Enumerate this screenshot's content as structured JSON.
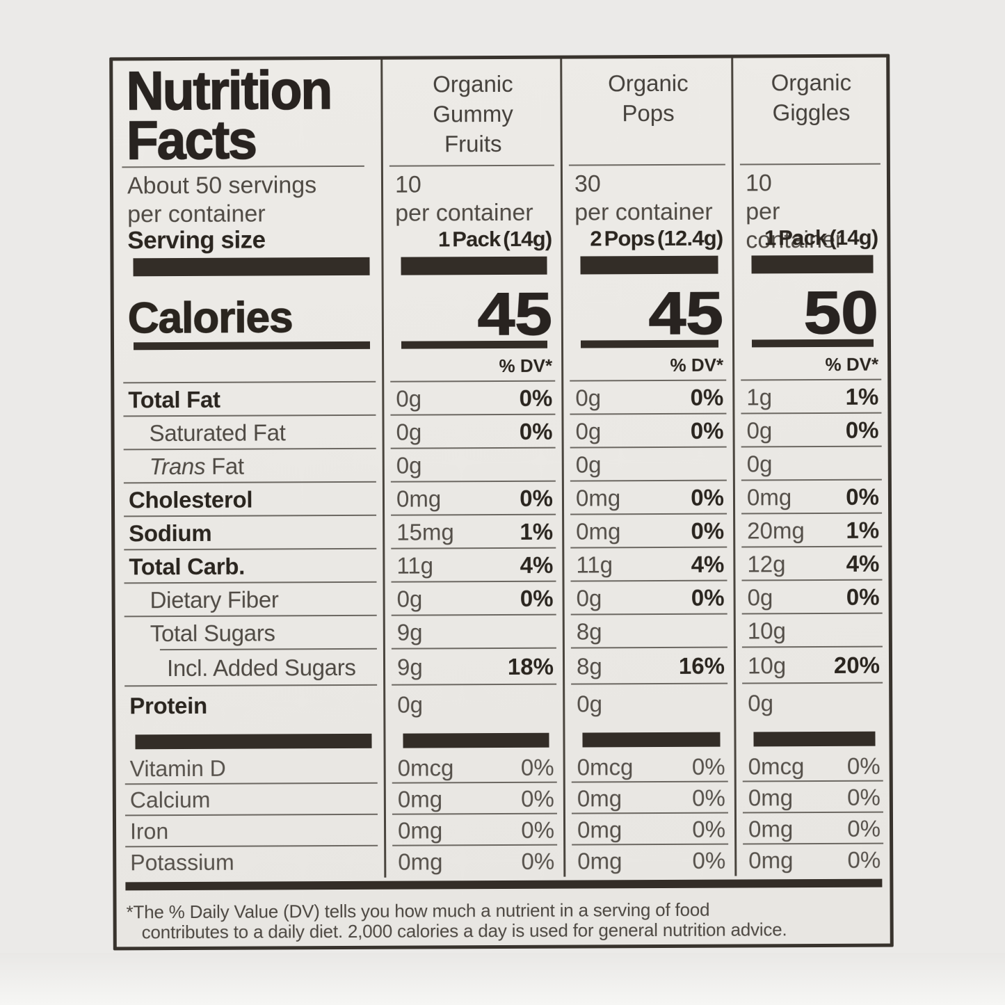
{
  "label": {
    "title_line1": "Nutrition",
    "title_line2": "Facts",
    "servings_line1": "About 50 servings",
    "servings_line2": "per container",
    "serving_size_label": "Serving size",
    "calories_label": "Calories",
    "dv_header": "% DV*",
    "footnote_line1": "*The % Daily Value (DV) tells you how much a nutrient in a serving of food",
    "footnote_line2": "contributes to a daily diet. 2,000 calories a day is used for general nutrition advice.",
    "colors": {
      "bar": "#332d27",
      "rule": "#6b6761",
      "text": "#4f4a44",
      "bold_text": "#2a251f"
    }
  },
  "products": [
    {
      "name": "Organic Gummy Fruits",
      "name_lines": [
        "Organic",
        "Gummy",
        "Fruits"
      ],
      "servings_count": "10",
      "servings_unit": "per container",
      "serving_size": "1 Pack (14g)",
      "calories": "45"
    },
    {
      "name": "Organic Pops",
      "name_lines": [
        "Organic",
        "Pops"
      ],
      "servings_count": "30",
      "servings_unit": "per container",
      "serving_size": "2 Pops (12.4g)",
      "calories": "45"
    },
    {
      "name": "Organic Giggles",
      "name_lines": [
        "Organic",
        "Giggles"
      ],
      "servings_count": "10",
      "servings_unit": "per container",
      "serving_size": "1 Pack (14g)",
      "calories": "50"
    }
  ],
  "nutrients": [
    {
      "name": "Total Fat",
      "cols": [
        {
          "amount": "0g",
          "dv": "0%"
        },
        {
          "amount": "0g",
          "dv": "0%"
        },
        {
          "amount": "1g",
          "dv": "1%"
        }
      ]
    },
    {
      "name": "Saturated Fat",
      "cols": [
        {
          "amount": "0g",
          "dv": "0%"
        },
        {
          "amount": "0g",
          "dv": "0%"
        },
        {
          "amount": "0g",
          "dv": "0%"
        }
      ]
    },
    {
      "name_italic": "Trans",
      "name_rest": " Fat",
      "cols": [
        {
          "amount": "0g"
        },
        {
          "amount": "0g"
        },
        {
          "amount": "0g"
        }
      ]
    },
    {
      "name": "Cholesterol",
      "cols": [
        {
          "amount": "0mg",
          "dv": "0%"
        },
        {
          "amount": "0mg",
          "dv": "0%"
        },
        {
          "amount": "0mg",
          "dv": "0%"
        }
      ]
    },
    {
      "name": "Sodium",
      "cols": [
        {
          "amount": "15mg",
          "dv": "1%"
        },
        {
          "amount": "0mg",
          "dv": "0%"
        },
        {
          "amount": "20mg",
          "dv": "1%"
        }
      ]
    },
    {
      "name": "Total Carb.",
      "cols": [
        {
          "amount": "11g",
          "dv": "4%"
        },
        {
          "amount": "11g",
          "dv": "4%"
        },
        {
          "amount": "12g",
          "dv": "4%"
        }
      ]
    },
    {
      "name": "Dietary Fiber",
      "cols": [
        {
          "amount": "0g",
          "dv": "0%"
        },
        {
          "amount": "0g",
          "dv": "0%"
        },
        {
          "amount": "0g",
          "dv": "0%"
        }
      ]
    },
    {
      "name": "Total Sugars",
      "cols": [
        {
          "amount": "9g"
        },
        {
          "amount": "8g"
        },
        {
          "amount": "10g"
        }
      ]
    },
    {
      "name": "Incl. Added Sugars",
      "cols": [
        {
          "amount": "9g",
          "dv": "18%"
        },
        {
          "amount": "8g",
          "dv": "16%"
        },
        {
          "amount": "10g",
          "dv": "20%"
        }
      ]
    },
    {
      "name": "Protein",
      "cols": [
        {
          "amount": "0g"
        },
        {
          "amount": "0g"
        },
        {
          "amount": "0g"
        }
      ]
    }
  ],
  "micronutrients": [
    {
      "name": "Vitamin D",
      "cols": [
        {
          "amount": "0mcg",
          "dv": "0%"
        },
        {
          "amount": "0mcg",
          "dv": "0%"
        },
        {
          "amount": "0mcg",
          "dv": "0%"
        }
      ]
    },
    {
      "name": "Calcium",
      "cols": [
        {
          "amount": "0mg",
          "dv": "0%"
        },
        {
          "amount": "0mg",
          "dv": "0%"
        },
        {
          "amount": "0mg",
          "dv": "0%"
        }
      ]
    },
    {
      "name": "Iron",
      "cols": [
        {
          "amount": "0mg",
          "dv": "0%"
        },
        {
          "amount": "0mg",
          "dv": "0%"
        },
        {
          "amount": "0mg",
          "dv": "0%"
        }
      ]
    },
    {
      "name": "Potassium",
      "cols": [
        {
          "amount": "0mg",
          "dv": "0%"
        },
        {
          "amount": "0mg",
          "dv": "0%"
        },
        {
          "amount": "0mg",
          "dv": "0%"
        }
      ]
    }
  ]
}
